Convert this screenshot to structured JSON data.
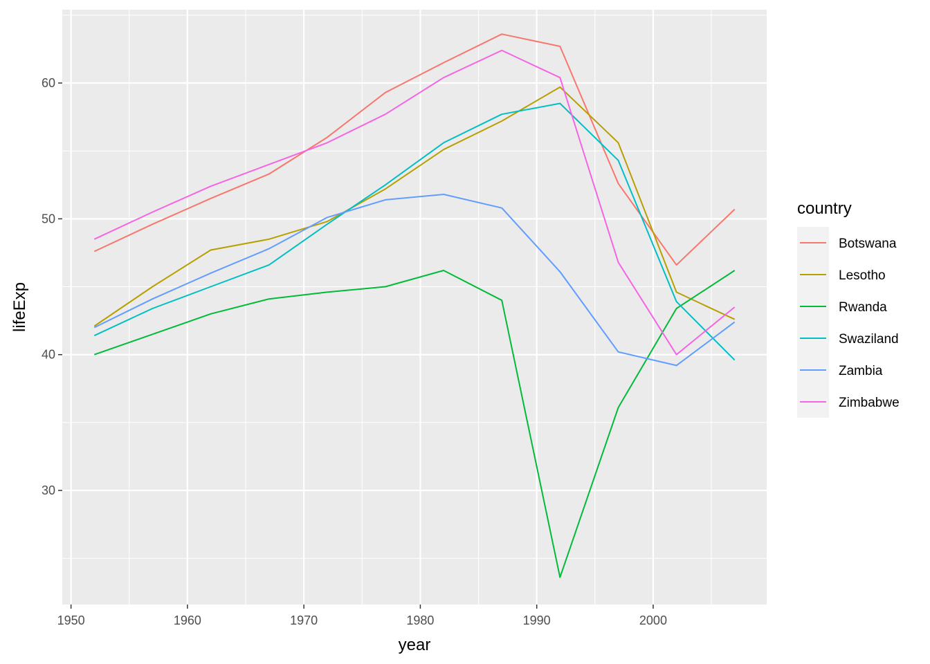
{
  "chart_data": {
    "type": "line",
    "xlabel": "year",
    "ylabel": "lifeExp",
    "x": [
      1952,
      1957,
      1962,
      1967,
      1972,
      1977,
      1982,
      1987,
      1992,
      1997,
      2002,
      2007
    ],
    "xlim": [
      1949.25,
      2009.75
    ],
    "ylim": [
      21.6,
      65.4
    ],
    "x_ticks": [
      1950,
      1960,
      1970,
      1980,
      1990,
      2000
    ],
    "y_ticks": [
      30,
      40,
      50,
      60
    ],
    "x_tick_labels": [
      "1950",
      "1960",
      "1970",
      "1980",
      "1990",
      "2000"
    ],
    "y_tick_labels": [
      "30",
      "40",
      "50",
      "60"
    ],
    "grid": true,
    "background": "#EBEBEB",
    "legend": {
      "title": "country",
      "position": "right"
    },
    "series": [
      {
        "name": "Botswana",
        "color": "#F8766D",
        "values": [
          47.6,
          49.6,
          51.5,
          53.3,
          56.0,
          59.3,
          61.5,
          63.6,
          62.7,
          52.6,
          46.6,
          50.7
        ]
      },
      {
        "name": "Lesotho",
        "color": "#B79F00",
        "values": [
          42.1,
          45.0,
          47.7,
          48.5,
          49.8,
          52.2,
          55.1,
          57.2,
          59.7,
          55.6,
          44.6,
          42.6
        ]
      },
      {
        "name": "Rwanda",
        "color": "#00BA38",
        "values": [
          40.0,
          41.5,
          43.0,
          44.1,
          44.6,
          45.0,
          46.2,
          44.0,
          23.6,
          36.1,
          43.4,
          46.2
        ]
      },
      {
        "name": "Swaziland",
        "color": "#00BFC4",
        "values": [
          41.4,
          43.4,
          45.0,
          46.6,
          49.6,
          52.5,
          55.6,
          57.7,
          58.5,
          54.3,
          43.9,
          39.6
        ]
      },
      {
        "name": "Zambia",
        "color": "#619CFF",
        "values": [
          42.0,
          44.1,
          46.0,
          47.8,
          50.1,
          51.4,
          51.8,
          50.8,
          46.1,
          40.2,
          39.2,
          42.4
        ]
      },
      {
        "name": "Zimbabwe",
        "color": "#F564E3",
        "values": [
          48.5,
          50.5,
          52.4,
          54.0,
          55.6,
          57.7,
          60.4,
          62.4,
          60.4,
          46.8,
          40.0,
          43.5
        ]
      }
    ]
  }
}
